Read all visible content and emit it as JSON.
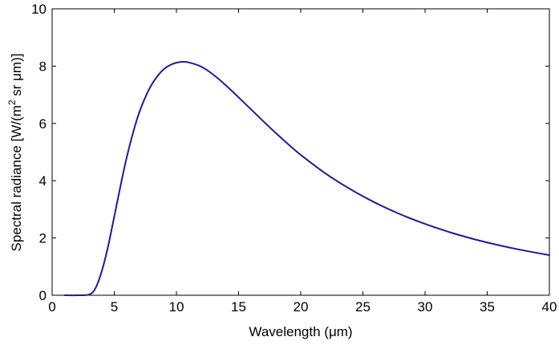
{
  "chart_data": {
    "type": "line",
    "title": "",
    "xlabel": "Wavelength (μm)",
    "ylabel": {
      "prefix": "Spectral radiance [W/(m",
      "superscript": "2",
      "suffix": " sr μm)]"
    },
    "xlim": [
      0,
      40
    ],
    "ylim": [
      0,
      10
    ],
    "xticks": [
      0,
      5,
      10,
      15,
      20,
      25,
      30,
      35,
      40
    ],
    "xtick_labels": [
      "0",
      "5",
      "10",
      "15",
      "20",
      "25",
      "30",
      "35",
      "40"
    ],
    "yticks": [
      0,
      2,
      4,
      6,
      8,
      10
    ],
    "ytick_labels": [
      "0",
      "2",
      "4",
      "6",
      "8",
      "10"
    ],
    "grid": false,
    "series": [
      {
        "color": "#1c1c9a",
        "x": [
          1,
          2,
          3,
          3.5,
          4,
          4.5,
          5,
          5.5,
          6,
          6.5,
          7,
          7.5,
          8,
          8.5,
          9,
          9.5,
          10,
          10.5,
          11,
          12,
          13,
          14,
          15,
          16,
          17,
          18,
          19,
          20,
          22,
          24,
          26,
          28,
          30,
          32,
          34,
          36,
          38,
          40
        ],
        "values": [
          0.0,
          0.0,
          0.03,
          0.26,
          0.85,
          1.71,
          2.75,
          3.82,
          4.81,
          5.66,
          6.37,
          6.92,
          7.35,
          7.67,
          7.9,
          8.04,
          8.12,
          8.15,
          8.13,
          7.98,
          7.69,
          7.32,
          6.91,
          6.49,
          6.07,
          5.66,
          5.27,
          4.9,
          4.25,
          3.7,
          3.23,
          2.83,
          2.49,
          2.2,
          1.95,
          1.74,
          1.56,
          1.4
        ]
      }
    ]
  }
}
